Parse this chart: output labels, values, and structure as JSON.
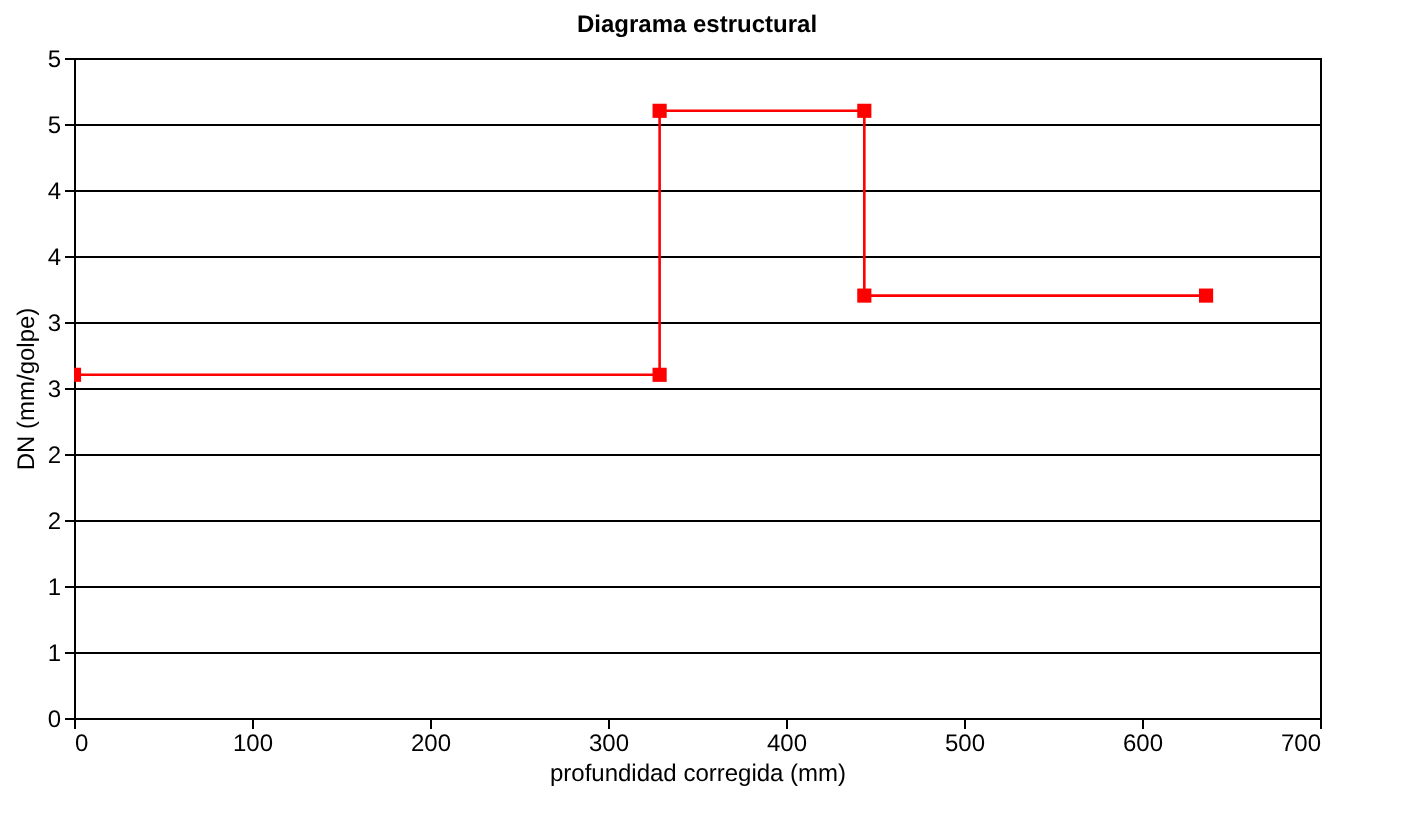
{
  "chart_data": {
    "type": "line",
    "title": "Diagrama estructural",
    "xlabel": "profundidad corregida (mm)",
    "ylabel": "DN (mm/golpe)",
    "x": [
      0,
      329,
      329,
      444,
      444,
      636
    ],
    "series": [
      {
        "color": "#ff0000",
        "values": [
          2.6,
          2.6,
          4.6,
          4.6,
          3.2,
          3.2
        ]
      }
    ],
    "xlim": [
      0,
      700
    ],
    "xticks": [
      0,
      100,
      200,
      300,
      400,
      500,
      600,
      700
    ],
    "ylim": [
      0,
      5
    ],
    "yticks": [
      0,
      {
        "value": 0.5,
        "label": "1"
      },
      1,
      {
        "value": 1.5,
        "label": "2"
      },
      2,
      {
        "value": 2.5,
        "label": "3"
      },
      3,
      {
        "value": 3.5,
        "label": "4"
      },
      4,
      {
        "value": 4.5,
        "label": "5"
      },
      5
    ],
    "grid": "y",
    "marker": "square",
    "line_style": "solid"
  }
}
